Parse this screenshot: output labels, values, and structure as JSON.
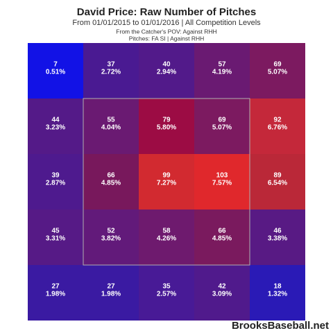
{
  "chart_data": {
    "type": "heatmap",
    "title": "David Price: Raw Number of Pitches",
    "subtitle": "From 01/01/2015 to 01/01/2016 | All Competition Levels",
    "notes": [
      "From the Catcher's POV:  Against RHH",
      "Pitches:  FA  SI  |  Against RHH"
    ],
    "values": [
      [
        7,
        37,
        40,
        57,
        69
      ],
      [
        44,
        55,
        79,
        69,
        92
      ],
      [
        39,
        66,
        99,
        103,
        89
      ],
      [
        45,
        52,
        58,
        66,
        46
      ],
      [
        27,
        27,
        35,
        42,
        18
      ]
    ],
    "shares": [
      [
        0.51,
        2.72,
        2.94,
        4.19,
        5.07
      ],
      [
        3.23,
        4.04,
        5.8,
        5.07,
        6.76
      ],
      [
        2.87,
        4.85,
        7.27,
        7.57,
        6.54
      ],
      [
        3.31,
        3.82,
        4.26,
        4.85,
        3.38
      ],
      [
        1.98,
        1.98,
        2.57,
        3.09,
        1.32
      ]
    ],
    "share_labels": [
      [
        "0.51%",
        "2.72%",
        "2.94%",
        "4.19%",
        "5.07%"
      ],
      [
        "3.23%",
        "4.04%",
        "5.80%",
        "5.07%",
        "6.76%"
      ],
      [
        "2.87%",
        "4.85%",
        "7.27%",
        "7.57%",
        "6.54%"
      ],
      [
        "3.31%",
        "3.82%",
        "4.26%",
        "4.85%",
        "3.38%"
      ],
      [
        "1.98%",
        "1.98%",
        "2.57%",
        "3.09%",
        "1.32%"
      ]
    ],
    "colors": [
      [
        "#1212e6",
        "#4a1a92",
        "#521a8a",
        "#6a1a72",
        "#7c1a60"
      ],
      [
        "#541a88",
        "#6a1a72",
        "#9c0c44",
        "#7c1a60",
        "#c4283a"
      ],
      [
        "#4e1a8e",
        "#78185c",
        "#d22a30",
        "#e0282c",
        "#ba2838"
      ],
      [
        "#561a86",
        "#621a7a",
        "#6e1a6e",
        "#7a1a5e",
        "#581a84"
      ],
      [
        "#3a1aa2",
        "#3a1aa2",
        "#481a96",
        "#501a8c",
        "#2a1ab6"
      ]
    ],
    "watermark": "BrooksBaseball.net"
  }
}
